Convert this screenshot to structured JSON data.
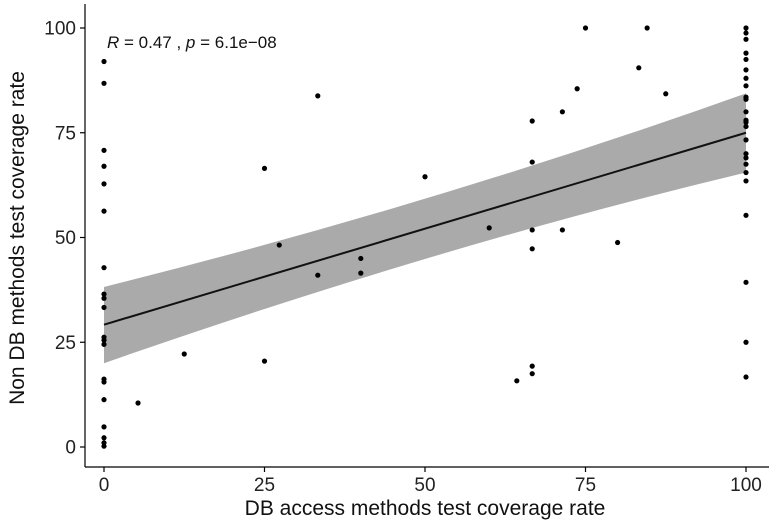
{
  "chart_data": {
    "type": "scatter",
    "xlabel": "DB access methods test coverage rate",
    "ylabel": "Non DB methods test coverage rate",
    "xlim": [
      -3,
      104
    ],
    "ylim": [
      -2,
      104
    ],
    "xticks": [
      0,
      25,
      50,
      75,
      100
    ],
    "yticks": [
      0,
      25,
      50,
      75,
      100
    ],
    "grid": false,
    "annotation": {
      "r_label": "R",
      "r_text": " = 0.47 , ",
      "p_label": "p",
      "p_text": " = 6.1e−08"
    },
    "fit": {
      "x": [
        0,
        100
      ],
      "y": [
        29.2,
        75.0
      ],
      "lower": [
        20.0,
        65.5
      ],
      "upper": [
        38.2,
        84.4
      ]
    },
    "points": [
      {
        "x": 0,
        "y": 92.0
      },
      {
        "x": 0,
        "y": 86.8
      },
      {
        "x": 0,
        "y": 70.8
      },
      {
        "x": 0,
        "y": 67.0
      },
      {
        "x": 0,
        "y": 62.8
      },
      {
        "x": 0,
        "y": 56.3
      },
      {
        "x": 0,
        "y": 42.8
      },
      {
        "x": 0,
        "y": 36.5
      },
      {
        "x": 0,
        "y": 35.5
      },
      {
        "x": 0,
        "y": 33.3
      },
      {
        "x": 0,
        "y": 26.2
      },
      {
        "x": 0,
        "y": 25.5
      },
      {
        "x": 0,
        "y": 24.5
      },
      {
        "x": 0,
        "y": 16.2
      },
      {
        "x": 0,
        "y": 15.5
      },
      {
        "x": 0,
        "y": 11.3
      },
      {
        "x": 0,
        "y": 4.8
      },
      {
        "x": 0,
        "y": 2.2
      },
      {
        "x": 0,
        "y": 1.0
      },
      {
        "x": 0,
        "y": 0.2
      },
      {
        "x": 5.3,
        "y": 10.5
      },
      {
        "x": 12.5,
        "y": 22.2
      },
      {
        "x": 25.0,
        "y": 66.5
      },
      {
        "x": 25.0,
        "y": 20.5
      },
      {
        "x": 27.3,
        "y": 48.2
      },
      {
        "x": 33.3,
        "y": 83.8
      },
      {
        "x": 33.3,
        "y": 41.0
      },
      {
        "x": 40.0,
        "y": 45.0
      },
      {
        "x": 40.0,
        "y": 41.5
      },
      {
        "x": 50.0,
        "y": 64.5
      },
      {
        "x": 60.0,
        "y": 52.3
      },
      {
        "x": 64.3,
        "y": 15.8
      },
      {
        "x": 66.7,
        "y": 77.8
      },
      {
        "x": 66.7,
        "y": 68.0
      },
      {
        "x": 66.7,
        "y": 51.8
      },
      {
        "x": 66.7,
        "y": 47.3
      },
      {
        "x": 66.7,
        "y": 19.3
      },
      {
        "x": 66.7,
        "y": 17.5
      },
      {
        "x": 71.4,
        "y": 80.0
      },
      {
        "x": 71.4,
        "y": 51.8
      },
      {
        "x": 73.7,
        "y": 85.5
      },
      {
        "x": 75.0,
        "y": 100.0
      },
      {
        "x": 80.0,
        "y": 48.8
      },
      {
        "x": 83.3,
        "y": 90.5
      },
      {
        "x": 84.6,
        "y": 100.0
      },
      {
        "x": 87.5,
        "y": 84.3
      },
      {
        "x": 100,
        "y": 100.0
      },
      {
        "x": 100,
        "y": 98.8
      },
      {
        "x": 100,
        "y": 97.3
      },
      {
        "x": 100,
        "y": 94.0
      },
      {
        "x": 100,
        "y": 92.5
      },
      {
        "x": 100,
        "y": 90.0
      },
      {
        "x": 100,
        "y": 88.0
      },
      {
        "x": 100,
        "y": 86.2
      },
      {
        "x": 100,
        "y": 83.5
      },
      {
        "x": 100,
        "y": 83.0
      },
      {
        "x": 100,
        "y": 80.0
      },
      {
        "x": 100,
        "y": 78.0
      },
      {
        "x": 100,
        "y": 77.5
      },
      {
        "x": 100,
        "y": 76.5
      },
      {
        "x": 100,
        "y": 73.3
      },
      {
        "x": 100,
        "y": 70.0
      },
      {
        "x": 100,
        "y": 69.0
      },
      {
        "x": 100,
        "y": 67.5
      },
      {
        "x": 100,
        "y": 65.5
      },
      {
        "x": 100,
        "y": 63.5
      },
      {
        "x": 100,
        "y": 55.3
      },
      {
        "x": 100,
        "y": 39.3
      },
      {
        "x": 100,
        "y": 25.0
      },
      {
        "x": 100,
        "y": 16.7
      }
    ]
  },
  "colors": {
    "point": "#000000",
    "line": "#111111",
    "band": "#aaaaaa",
    "axis": "#000000"
  }
}
